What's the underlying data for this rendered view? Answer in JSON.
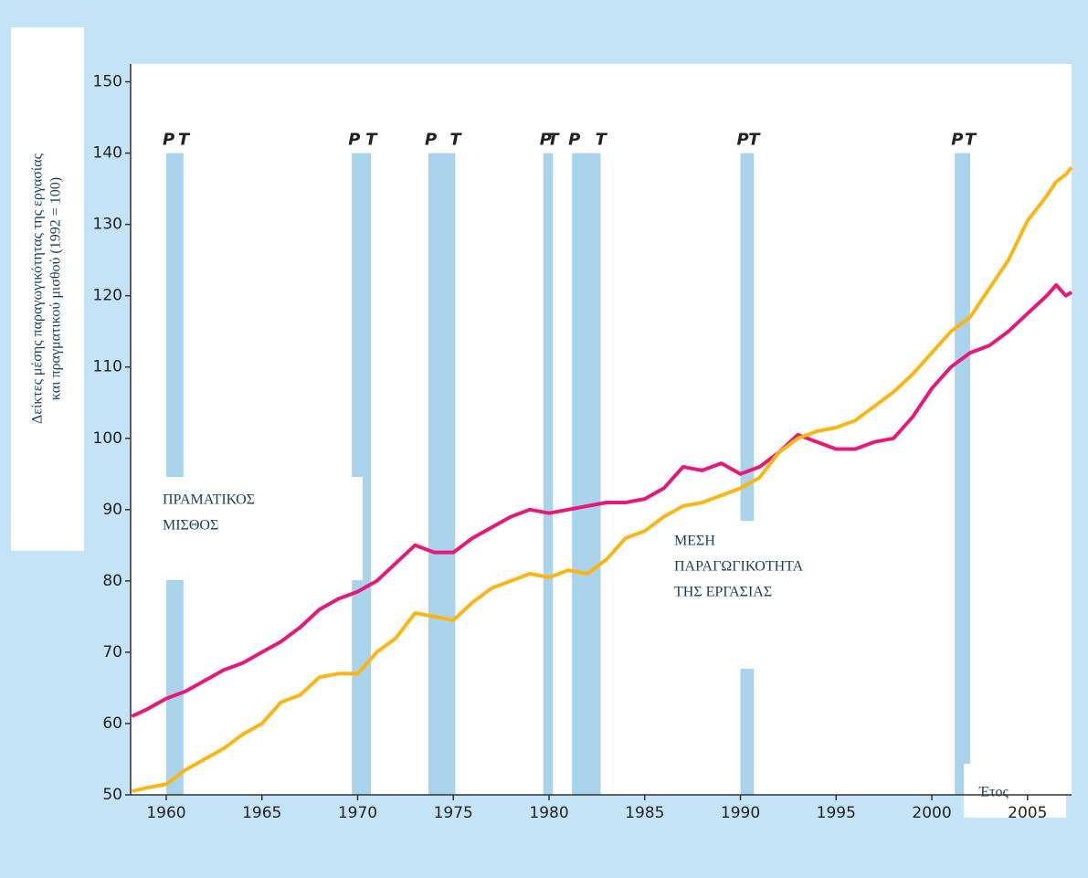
{
  "chart_data": {
    "type": "line",
    "y_axis_label": [
      "Δείκτες μέσης παραγωγικότητας της εργασίας",
      "και πραγματικού μισθού (1992 = 100)"
    ],
    "x_axis_label": "Έτος",
    "x": [
      1958.2,
      1959,
      1960,
      1961,
      1962,
      1963,
      1964,
      1965,
      1966,
      1967,
      1968,
      1969,
      1970,
      1971,
      1972,
      1973,
      1974,
      1975,
      1976,
      1977,
      1978,
      1979,
      1980,
      1981,
      1982,
      1983,
      1984,
      1985,
      1986,
      1987,
      1988,
      1989,
      1990,
      1991,
      1992,
      1993,
      1994,
      1995,
      1996,
      1997,
      1998,
      1999,
      2000,
      2001,
      2002,
      2003,
      2004,
      2005,
      2006,
      2006.5,
      2007,
      2007.3
    ],
    "series": [
      {
        "label_lines": [
          "ΠΡΑΜΑΤΙΚΟΣ",
          "ΜΙΣΘΟΣ"
        ],
        "color": "#e5197a",
        "values": [
          61,
          62,
          63.5,
          64.5,
          66,
          67.5,
          68.5,
          70,
          71.5,
          73.5,
          76,
          77.5,
          78.5,
          80,
          82.5,
          85,
          84,
          84,
          86,
          87.5,
          89,
          90,
          89.5,
          90,
          90.5,
          91,
          91,
          91.5,
          93,
          96,
          95.5,
          96.5,
          95,
          96,
          98,
          100.5,
          99.5,
          98.5,
          98.5,
          99.5,
          100,
          103,
          107,
          110,
          112,
          113,
          115,
          117.5,
          120,
          121.5,
          120,
          120.5
        ]
      },
      {
        "label_lines": [
          "ΜΕΣΗ",
          "ΠΑΡΑΓΩΓΙΚΟΤΗΤΑ",
          "ΤΗΣ ΕΡΓΑΣΙΑΣ"
        ],
        "color": "#fbb615",
        "values": [
          50.5,
          51,
          51.5,
          53.5,
          55,
          56.5,
          58.5,
          60,
          63,
          64,
          66.5,
          67,
          67,
          70,
          72,
          75.5,
          75,
          74.5,
          77,
          79,
          80,
          81,
          80.5,
          81.5,
          81,
          83,
          86,
          87,
          89,
          90.5,
          91,
          92,
          93,
          94.5,
          98,
          100,
          101,
          101.5,
          102.5,
          104.5,
          106.5,
          109,
          112,
          115,
          117,
          121,
          125,
          130.5,
          134,
          136,
          137,
          138
        ]
      }
    ],
    "peak_label": "P",
    "trough_label": "T",
    "recessions": [
      {
        "peak": 1960.0,
        "trough": 1960.9
      },
      {
        "peak": 1969.7,
        "trough": 1970.7
      },
      {
        "peak": 1973.7,
        "trough": 1975.1
      },
      {
        "peak": 1979.7,
        "trough": 1980.2
      },
      {
        "peak": 1981.2,
        "trough": 1982.7
      },
      {
        "peak": 1990.0,
        "trough": 1990.7
      },
      {
        "peak": 2001.2,
        "trough": 2002.0
      }
    ],
    "band_top": 140,
    "band_color": "#a9d3ea",
    "xlim": [
      1958.14,
      2007.3
    ],
    "ylim": [
      50,
      152.5
    ],
    "xticks": [
      1960,
      1965,
      1970,
      1975,
      1980,
      1985,
      1990,
      1995,
      2000,
      2005
    ],
    "yticks": [
      50,
      60,
      70,
      80,
      90,
      100,
      110,
      120,
      130,
      140,
      150
    ]
  }
}
